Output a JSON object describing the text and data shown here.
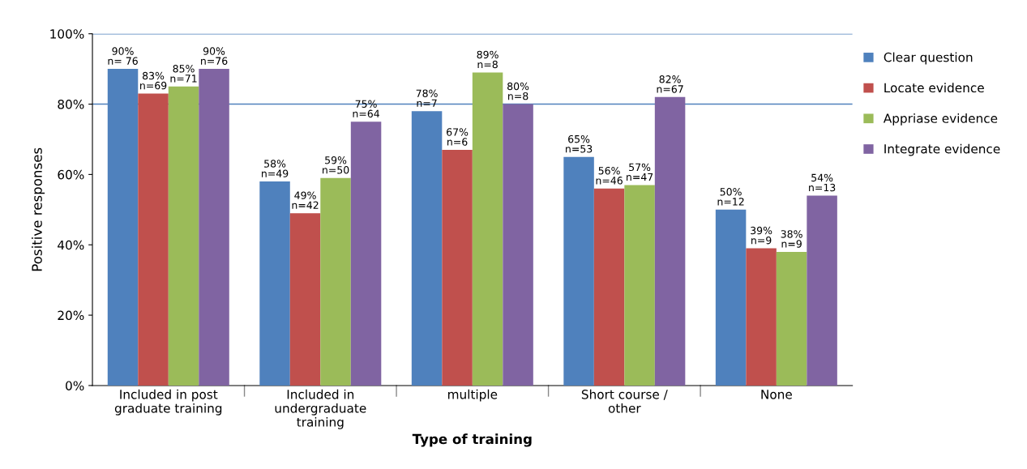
{
  "chart_data": {
    "type": "bar",
    "xlabel": "Type of training",
    "ylabel": "Positive responses",
    "categories": [
      "Included in post\ngraduate training",
      "Included in\nundergraduate\ntraining",
      "multiple",
      "Short course /\nother",
      "None"
    ],
    "series": [
      {
        "name": "Clear question",
        "color": "#4f81bd",
        "values": [
          90,
          58,
          78,
          65,
          50
        ],
        "value_labels": [
          "90%\nn= 76",
          "58%\nn=49",
          "78%\nn=7",
          "65%\nn=53",
          "50%\nn=12"
        ]
      },
      {
        "name": "Locate evidence",
        "color": "#c0504d",
        "values": [
          83,
          49,
          67,
          56,
          39
        ],
        "value_labels": [
          "83%\nn=69",
          "49%\nn=42",
          "67%\nn=6",
          "56%\nn=46",
          "39%\nn=9"
        ]
      },
      {
        "name": "Appriase evidence",
        "color": "#9bbb59",
        "values": [
          85,
          59,
          89,
          57,
          38
        ],
        "value_labels": [
          "85%\nn=71",
          "59%\nn=50",
          "89%\nn=8",
          "57%\nn=47",
          "38%\nn=9"
        ]
      },
      {
        "name": "Integrate evidence",
        "color": "#8064a2",
        "values": [
          90,
          75,
          80,
          82,
          54
        ],
        "value_labels": [
          "90%\nn=76",
          "75%\nn=64",
          "80%\nn=8",
          "82%\nn=67",
          "54%\nn=13"
        ]
      }
    ],
    "ylim": [
      0,
      100
    ],
    "yticks": [
      {
        "value": 0,
        "label": "0%"
      },
      {
        "value": 20,
        "label": "20%"
      },
      {
        "value": 40,
        "label": "40%"
      },
      {
        "value": 60,
        "label": "60%"
      },
      {
        "value": 80,
        "label": "80%"
      },
      {
        "value": 100,
        "label": "100%"
      }
    ],
    "ref_lines": [
      {
        "axis": "y",
        "value": 80,
        "color": "#4f81bd"
      },
      {
        "axis": "y",
        "value": 100,
        "color": "#4f81bd"
      }
    ],
    "legend": "right",
    "grid": false
  }
}
